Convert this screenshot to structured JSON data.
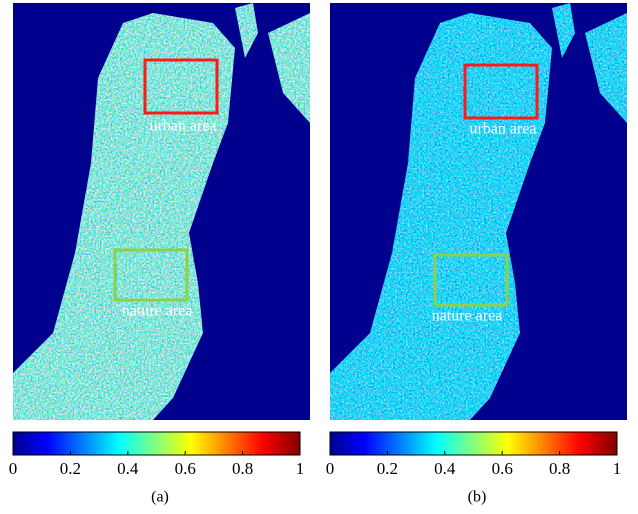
{
  "panels": [
    {
      "caption": "(a)",
      "annotations": {
        "urban": "urban area",
        "nature": "nature area"
      },
      "colorbar": {
        "lim": [
          0,
          1
        ],
        "ticks": [
          0,
          0.2,
          0.4,
          0.6,
          0.8,
          1
        ]
      }
    },
    {
      "caption": "(b)",
      "annotations": {
        "urban": "urban area",
        "nature": "nature area"
      },
      "colorbar": {
        "lim": [
          0,
          1
        ],
        "ticks": [
          0,
          0.2,
          0.4,
          0.6,
          0.8,
          1
        ]
      }
    }
  ]
}
